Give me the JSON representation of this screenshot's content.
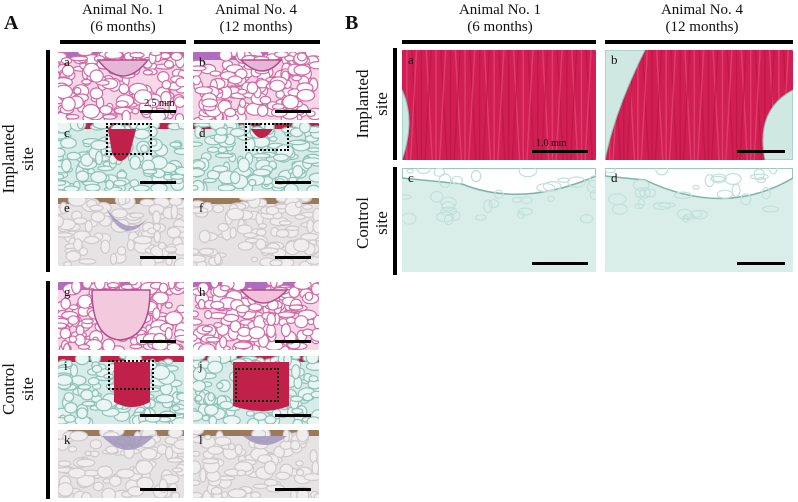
{
  "panel_A": {
    "letter": "A",
    "col1": {
      "line1": "Animal No. 1",
      "line2": "(6 months)"
    },
    "col2": {
      "line1": "Animal No. 4",
      "line2": "(12 months)"
    },
    "row1": {
      "line1": "Implanted",
      "line2": "site"
    },
    "row2": {
      "line1": "Control",
      "line2": "site"
    },
    "tiles": [
      "a",
      "b",
      "c",
      "d",
      "e",
      "f",
      "g",
      "h",
      "i",
      "j",
      "k",
      "l"
    ],
    "scale_label": "2.5 mm"
  },
  "panel_B": {
    "letter": "B",
    "col1": {
      "line1": "Animal No. 1",
      "line2": "(6 months)"
    },
    "col2": {
      "line1": "Animal No. 4",
      "line2": "(12 months)"
    },
    "row1": {
      "line1": "Implanted",
      "line2": "site"
    },
    "row2": {
      "line1": "Control",
      "line2": "site"
    },
    "tiles": [
      "a",
      "b",
      "c",
      "d"
    ],
    "scale_label": "1.0 mm"
  },
  "colors": {
    "he_pink": "#e9a7c7",
    "he_purple": "#b06cc0",
    "safranin_red": "#c0204a",
    "fastgreen": "#bfe0d8",
    "ihc_gray": "#e6e3e4",
    "ihc_brown": "#9a7a5a"
  }
}
